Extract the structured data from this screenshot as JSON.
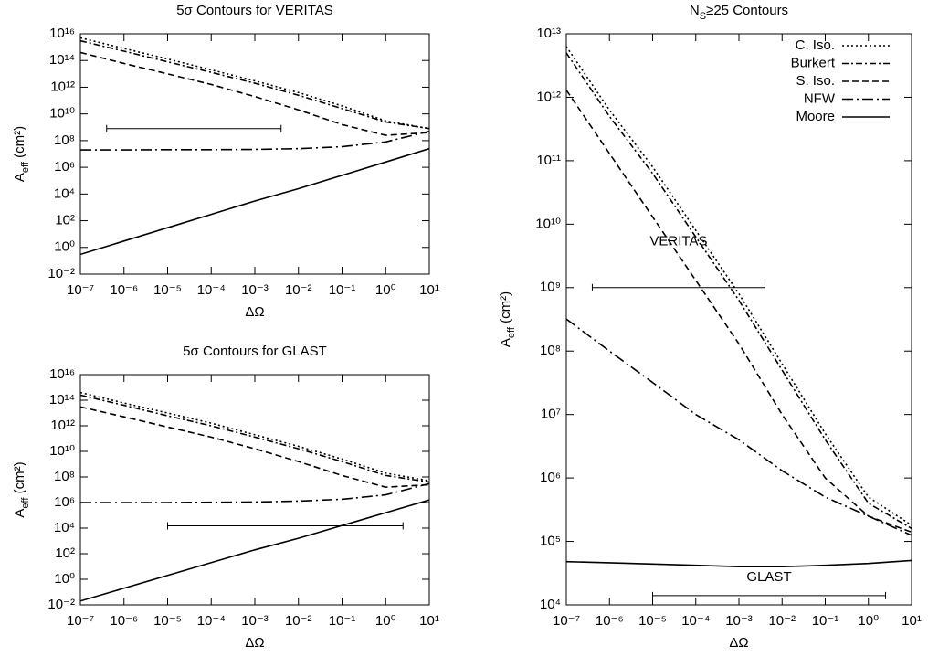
{
  "chart_data": [
    {
      "type": "line",
      "log_x": true,
      "log_y": true,
      "title": "5σ Contours for VERITAS",
      "xlabel": "ΔΩ",
      "ylabel": {
        "text": "A",
        "sub": "eff",
        "after": " (cm²)"
      },
      "x": [
        1e-07,
        1e-06,
        1e-05,
        0.0001,
        0.001,
        0.01,
        0.1,
        1,
        10
      ],
      "xlim": [
        1e-07,
        10
      ],
      "ylim": [
        0.01,
        1e+16
      ],
      "xticks": [
        {
          "value": 1e-07,
          "label": "10⁻⁷"
        },
        {
          "value": 1e-06,
          "label": "10⁻⁶"
        },
        {
          "value": 1e-05,
          "label": "10⁻⁵"
        },
        {
          "value": 0.0001,
          "label": "10⁻⁴"
        },
        {
          "value": 0.001,
          "label": "10⁻³"
        },
        {
          "value": 0.01,
          "label": "10⁻²"
        },
        {
          "value": 0.1,
          "label": "10⁻¹"
        },
        {
          "value": 1,
          "label": "10⁰"
        },
        {
          "value": 10,
          "label": "10¹"
        }
      ],
      "yticks": [
        {
          "value": 0.01,
          "label": "10⁻²"
        },
        {
          "value": 1,
          "label": "10⁰"
        },
        {
          "value": 100.0,
          "label": "10²"
        },
        {
          "value": 10000.0,
          "label": "10⁴"
        },
        {
          "value": 1000000.0,
          "label": "10⁶"
        },
        {
          "value": 100000000.0,
          "label": "10⁸"
        },
        {
          "value": 10000000000.0,
          "label": "10¹⁰"
        },
        {
          "value": 1000000000000.0,
          "label": "10¹²"
        },
        {
          "value": 100000000000000.0,
          "label": "10¹⁴"
        },
        {
          "value": 1e+16,
          "label": "10¹⁶"
        }
      ],
      "series": [
        {
          "color": "#000000",
          "dash": "dotted",
          "values": [
            5000000000000000.0,
            800000000000000.0,
            130000000000000.0,
            20000000000000.0,
            3000000000000.0,
            400000000000.0,
            40000000000.0,
            3000000000.0,
            800000000.0
          ]
        },
        {
          "color": "#000000",
          "dash": "dash-dot-fine",
          "values": [
            3000000000000000.0,
            500000000000000.0,
            80000000000000.0,
            13000000000000.0,
            2000000000000.0,
            250000000000.0,
            25000000000.0,
            2500000000.0,
            800000000.0
          ]
        },
        {
          "color": "#000000",
          "dash": "dashed",
          "values": [
            400000000000000.0,
            60000000000000.0,
            10000000000000.0,
            1600000000000.0,
            200000000000.0,
            20000000000.0,
            1600000000.0,
            250000000.0,
            400000000.0
          ]
        },
        {
          "color": "#000000",
          "dash": "dash-dot",
          "values": [
            20000000.0,
            20000000.0,
            21000000.0,
            21000000.0,
            22000000.0,
            25000000.0,
            35000000.0,
            80000000.0,
            500000000.0
          ]
        },
        {
          "color": "#000000",
          "dash": "solid",
          "values": [
            0.3,
            3,
            30,
            300,
            3000,
            25000.0,
            250000.0,
            2500000.0,
            25000000.0
          ]
        }
      ],
      "range_bars": [
        {
          "x": [
            4e-07,
            0.004
          ],
          "y": 800000000.0
        }
      ]
    },
    {
      "type": "line",
      "log_x": true,
      "log_y": true,
      "title": "5σ Contours for GLAST",
      "xlabel": "ΔΩ",
      "ylabel": {
        "text": "A",
        "sub": "eff",
        "after": " (cm²)"
      },
      "x": [
        1e-07,
        1e-06,
        1e-05,
        0.0001,
        0.001,
        0.01,
        0.1,
        1,
        10
      ],
      "xlim": [
        1e-07,
        10
      ],
      "ylim": [
        0.01,
        1e+16
      ],
      "xticks": [
        {
          "value": 1e-07,
          "label": "10⁻⁷"
        },
        {
          "value": 1e-06,
          "label": "10⁻⁶"
        },
        {
          "value": 1e-05,
          "label": "10⁻⁵"
        },
        {
          "value": 0.0001,
          "label": "10⁻⁴"
        },
        {
          "value": 0.001,
          "label": "10⁻³"
        },
        {
          "value": 0.01,
          "label": "10⁻²"
        },
        {
          "value": 0.1,
          "label": "10⁻¹"
        },
        {
          "value": 1,
          "label": "10⁰"
        },
        {
          "value": 10,
          "label": "10¹"
        }
      ],
      "yticks": [
        {
          "value": 0.01,
          "label": "10⁻²"
        },
        {
          "value": 1,
          "label": "10⁰"
        },
        {
          "value": 100.0,
          "label": "10²"
        },
        {
          "value": 10000.0,
          "label": "10⁴"
        },
        {
          "value": 1000000.0,
          "label": "10⁶"
        },
        {
          "value": 100000000.0,
          "label": "10⁸"
        },
        {
          "value": 10000000000.0,
          "label": "10¹⁰"
        },
        {
          "value": 1000000000000.0,
          "label": "10¹²"
        },
        {
          "value": 100000000000000.0,
          "label": "10¹⁴"
        },
        {
          "value": 1e+16,
          "label": "10¹⁶"
        }
      ],
      "series": [
        {
          "color": "#000000",
          "dash": "dotted",
          "values": [
            400000000000000.0,
            60000000000000.0,
            10000000000000.0,
            1600000000000.0,
            200000000000.0,
            25000000000.0,
            2500000000.0,
            200000000.0,
            50000000.0
          ]
        },
        {
          "color": "#000000",
          "dash": "dash-dot-fine",
          "values": [
            250000000000000.0,
            40000000000000.0,
            6000000000000.0,
            1000000000000.0,
            130000000000.0,
            16000000000.0,
            1600000000.0,
            130000000.0,
            40000000.0
          ]
        },
        {
          "color": "#000000",
          "dash": "dashed",
          "values": [
            30000000000000.0,
            5000000000000.0,
            800000000000.0,
            130000000000.0,
            16000000000.0,
            1600000000.0,
            130000000.0,
            16000000.0,
            25000000.0
          ]
        },
        {
          "color": "#000000",
          "dash": "dash-dot",
          "values": [
            1000000.0,
            1000000.0,
            1000000.0,
            1050000.0,
            1100000.0,
            1300000.0,
            1800000.0,
            4000000.0,
            30000000.0
          ]
        },
        {
          "color": "#000000",
          "dash": "solid",
          "values": [
            0.02,
            0.2,
            2,
            20,
            200,
            1600,
            16000.0,
            160000.0,
            1600000.0
          ]
        }
      ],
      "range_bars": [
        {
          "x": [
            1e-05,
            2.5
          ],
          "y": 15000.0
        }
      ]
    },
    {
      "type": "line",
      "log_x": true,
      "log_y": true,
      "title": {
        "text": "N",
        "sub": "S",
        "after": "≥25 Contours"
      },
      "xlabel": "ΔΩ",
      "ylabel": {
        "text": "A",
        "sub": "eff",
        "after": " (cm²)"
      },
      "x": [
        1e-07,
        1e-06,
        1e-05,
        0.0001,
        0.001,
        0.01,
        0.1,
        1,
        10
      ],
      "xlim": [
        1e-07,
        10
      ],
      "ylim": [
        10000.0,
        10000000000000.0
      ],
      "xticks": [
        {
          "value": 1e-07,
          "label": "10⁻⁷"
        },
        {
          "value": 1e-06,
          "label": "10⁻⁶"
        },
        {
          "value": 1e-05,
          "label": "10⁻⁵"
        },
        {
          "value": 0.0001,
          "label": "10⁻⁴"
        },
        {
          "value": 0.001,
          "label": "10⁻³"
        },
        {
          "value": 0.01,
          "label": "10⁻²"
        },
        {
          "value": 0.1,
          "label": "10⁻¹"
        },
        {
          "value": 1,
          "label": "10⁰"
        },
        {
          "value": 10,
          "label": "10¹"
        }
      ],
      "yticks": [
        {
          "value": 10000.0,
          "label": "10⁴"
        },
        {
          "value": 100000.0,
          "label": "10⁵"
        },
        {
          "value": 1000000.0,
          "label": "10⁶"
        },
        {
          "value": 10000000.0,
          "label": "10⁷"
        },
        {
          "value": 100000000.0,
          "label": "10⁸"
        },
        {
          "value": 1000000000.0,
          "label": "10⁹"
        },
        {
          "value": 10000000000.0,
          "label": "10¹⁰"
        },
        {
          "value": 100000000000.0,
          "label": "10¹¹"
        },
        {
          "value": 1000000000000.0,
          "label": "10¹²"
        },
        {
          "value": 10000000000000.0,
          "label": "10¹³"
        }
      ],
      "legend": "upper right",
      "series": [
        {
          "name": "C. Iso.",
          "color": "#000000",
          "dash": "dotted",
          "values": [
            6300000000000.0,
            630000000000.0,
            80000000000.0,
            8000000000.0,
            800000000.0,
            63000000.0,
            5000000.0,
            500000.0,
            180000.0
          ]
        },
        {
          "name": "Burkert",
          "color": "#000000",
          "dash": "dash-dot-fine",
          "values": [
            5000000000000.0,
            500000000000.0,
            63000000000.0,
            6300000000.0,
            630000000.0,
            50000000.0,
            4000000.0,
            400000.0,
            160000.0
          ]
        },
        {
          "name": "S. Iso.",
          "color": "#000000",
          "dash": "dashed",
          "values": [
            1300000000000.0,
            130000000000.0,
            13000000000.0,
            1300000000.0,
            130000000.0,
            10000000.0,
            1000000.0,
            250000.0,
            140000.0
          ]
        },
        {
          "name": "NFW",
          "color": "#000000",
          "dash": "dash-dot",
          "values": [
            320000000.0,
            100000000.0,
            32000000.0,
            10000000.0,
            4000000.0,
            1300000.0,
            500000.0,
            250000.0,
            125000.0
          ]
        },
        {
          "name": "Moore",
          "color": "#000000",
          "dash": "solid",
          "values": [
            48000.0,
            46000.0,
            44000.0,
            42000.0,
            40000.0,
            40000.0,
            42000.0,
            45000.0,
            50000.0
          ]
        }
      ],
      "range_bars": [
        {
          "label": "VERITAS",
          "x": [
            4e-07,
            0.004
          ],
          "y": 1000000000.0
        },
        {
          "label": "GLAST",
          "x": [
            1e-05,
            2.5
          ],
          "y": 14000.0
        }
      ]
    }
  ]
}
